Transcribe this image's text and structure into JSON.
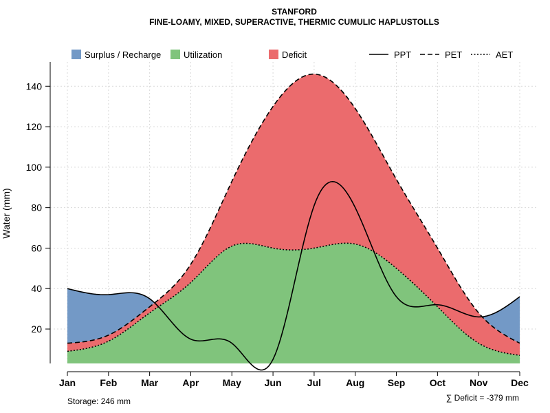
{
  "chart_data": {
    "type": "area",
    "title": "STANFORD",
    "subtitle": "FINE-LOAMY, MIXED, SUPERACTIVE, THERMIC CUMULIC HAPLUSTOLLS",
    "xlabel": "",
    "ylabel": "Water (mm)",
    "ylim": [
      3,
      152
    ],
    "yticks": [
      20,
      40,
      60,
      80,
      100,
      120,
      140
    ],
    "grid": true,
    "legend_position": "top",
    "categories": [
      "Jan",
      "Feb",
      "Mar",
      "Apr",
      "May",
      "Jun",
      "Jul",
      "Aug",
      "Sep",
      "Oct",
      "Nov",
      "Dec"
    ],
    "series": [
      {
        "name": "PPT",
        "style": "solid",
        "values": [
          40,
          37,
          35,
          15,
          13,
          5,
          81,
          80,
          36,
          32,
          26,
          36
        ]
      },
      {
        "name": "PET",
        "style": "dashed",
        "values": [
          13,
          17,
          31,
          52,
          93,
          130,
          146,
          129,
          94,
          60,
          28,
          13
        ]
      },
      {
        "name": "AET",
        "style": "dotted",
        "values": [
          9,
          14,
          28,
          43,
          61,
          60,
          60,
          62,
          50,
          31,
          13,
          7
        ]
      }
    ],
    "areas": [
      {
        "name": "Surplus / Recharge",
        "color": "#7399c6"
      },
      {
        "name": "Utilization",
        "color": "#80c47c"
      },
      {
        "name": "Deficit",
        "color": "#eb6b6d"
      }
    ],
    "footer_left": "Storage: 246 mm",
    "footer_right": "∑ Deficit = -379 mm"
  }
}
